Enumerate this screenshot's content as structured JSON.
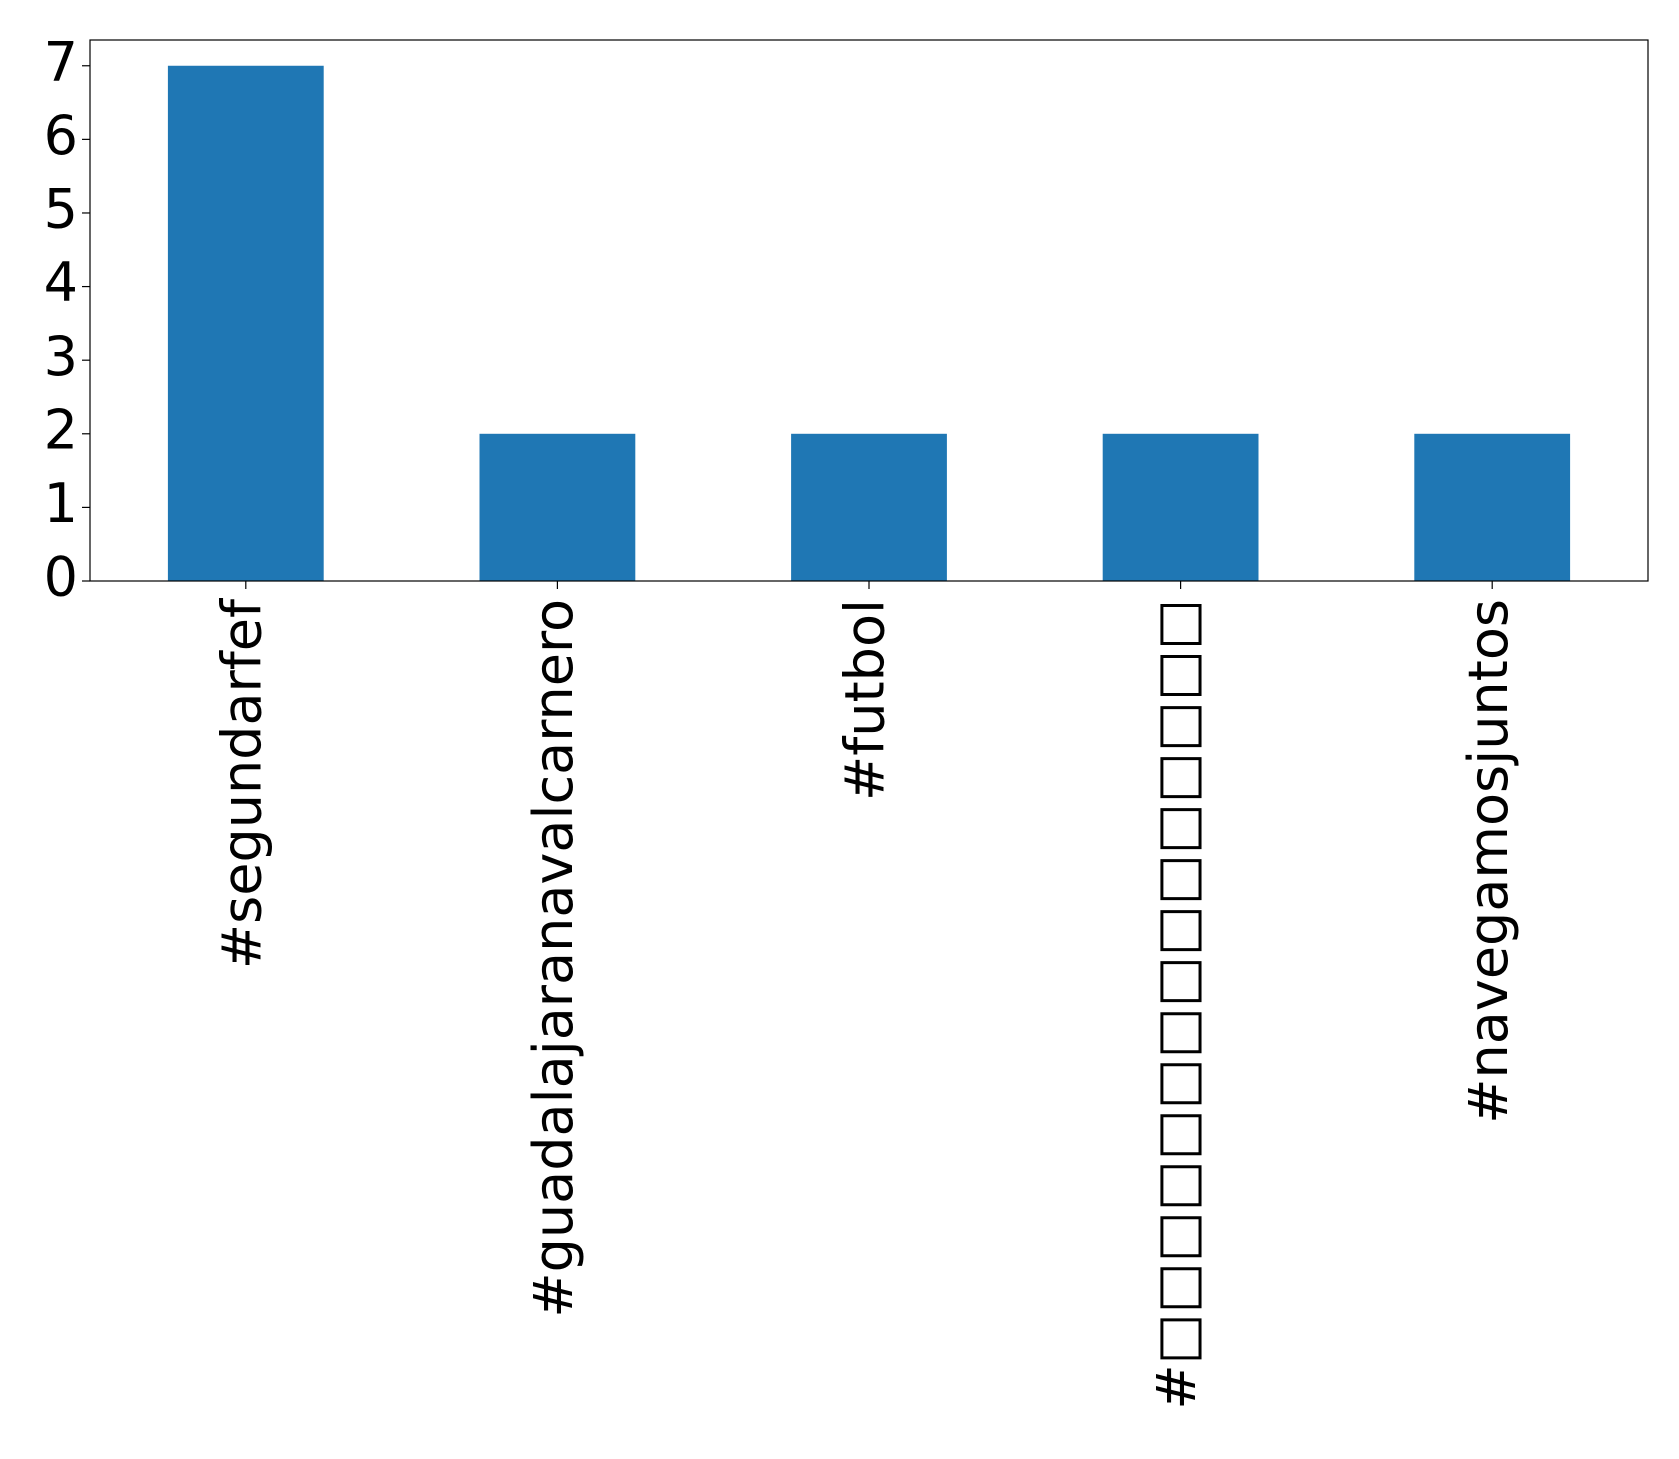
{
  "chart_data": {
    "type": "bar",
    "categories": [
      "#segundarfef",
      "#guadalajaranavalcarnero",
      "#futbol",
      "#□□□□□□□□□□□□□□□",
      "#navegamosjuntos"
    ],
    "values": [
      7,
      2,
      2,
      2,
      2
    ],
    "color": "#1f77b4",
    "ylim": [
      0,
      7.35
    ],
    "yticks": [
      0,
      1,
      2,
      3,
      4,
      5,
      6,
      7
    ],
    "grid": false
  }
}
